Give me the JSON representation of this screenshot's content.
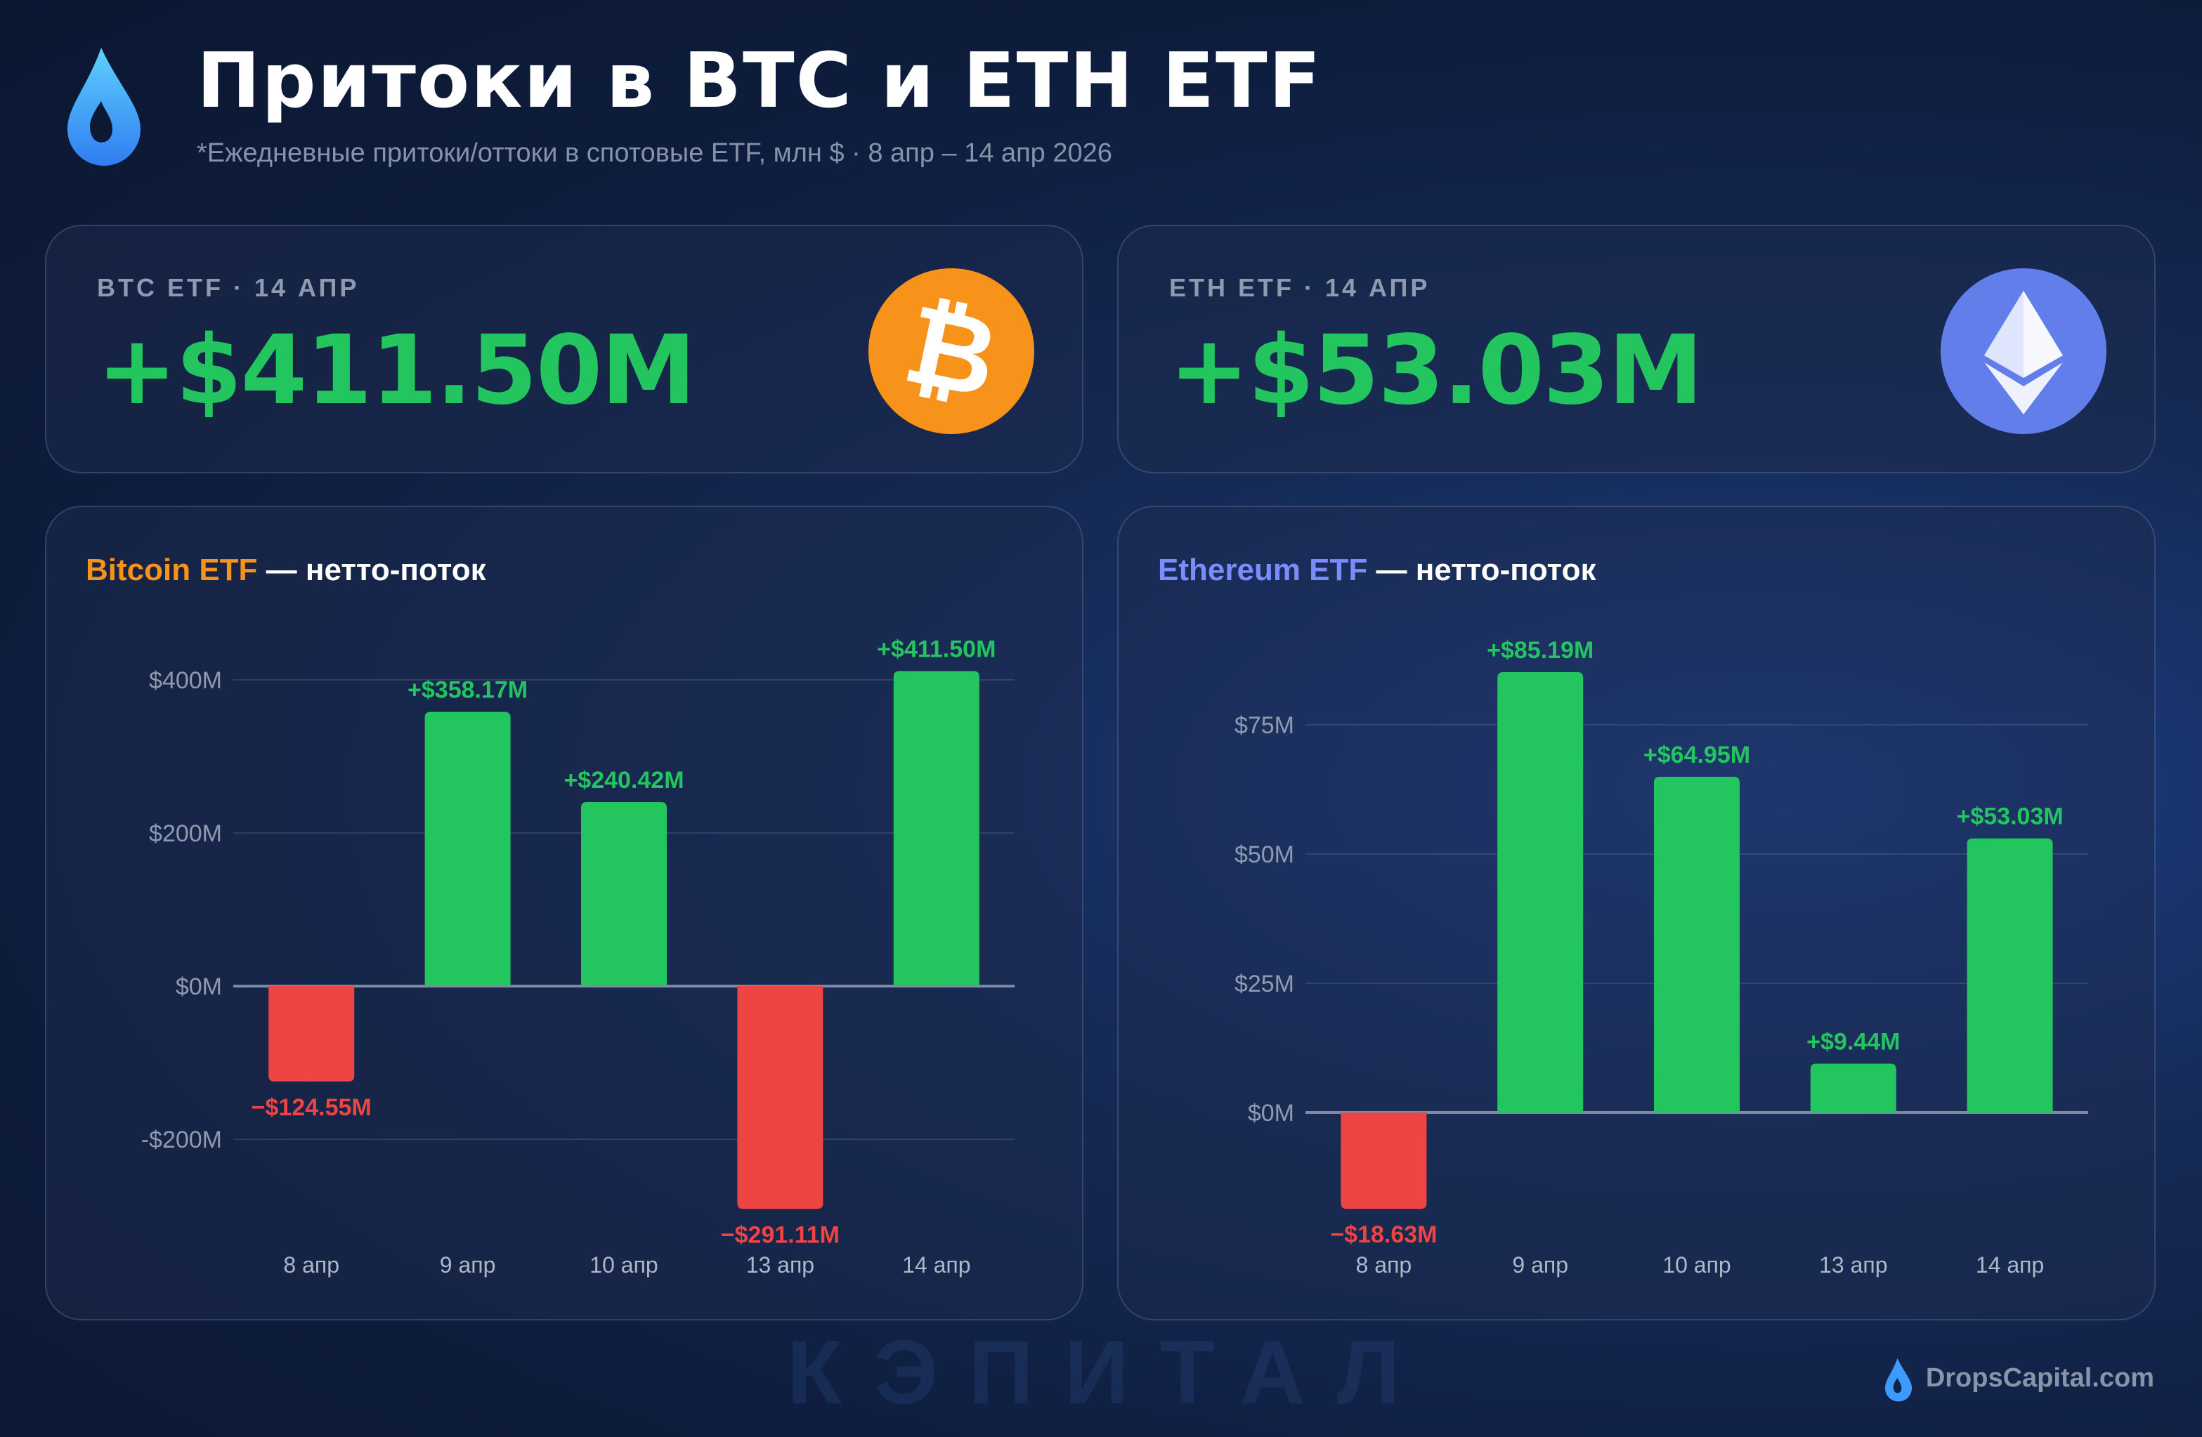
{
  "header": {
    "title": "Притоки в BTC и ETH ETF",
    "subtitle": "*Ежедневные притоки/оттоки в спотовые ETF, млн $ · 8 апр – 14 апр 2026",
    "logo_icon": "drop-icon"
  },
  "kpis": [
    {
      "label": "BTC ETF · 14 АПР",
      "value": "+$411.50M",
      "icon": "bitcoin-icon",
      "icon_color": "#f7931a"
    },
    {
      "label": "ETH ETF · 14 АПР",
      "value": "+$53.03M",
      "icon": "ethereum-icon",
      "icon_color": "#627eea"
    }
  ],
  "colors": {
    "positive": "#22c55e",
    "negative": "#ef4444",
    "btc_accent": "#f7931a",
    "eth_accent": "#7b8cff"
  },
  "chart_data": [
    {
      "type": "bar",
      "title_accent": "Bitcoin ETF",
      "title_rest": " — нетто-поток",
      "categories": [
        "8 апр",
        "9 апр",
        "10 апр",
        "13 апр",
        "14 апр"
      ],
      "values": [
        -124.55,
        358.17,
        240.42,
        -291.11,
        411.5
      ],
      "labels": [
        "−$124.55M",
        "+$358.17M",
        "+$240.42M",
        "−$291.11M",
        "+$411.50M"
      ],
      "yticks": [
        400,
        200,
        0,
        -200
      ],
      "ytick_labels": [
        "$400M",
        "$200M",
        "$0M",
        "-$200M"
      ],
      "ylim": [
        -330,
        440
      ],
      "grid": true
    },
    {
      "type": "bar",
      "title_accent": "Ethereum ETF",
      "title_rest": " — нетто-поток",
      "categories": [
        "8 апр",
        "9 апр",
        "10 апр",
        "13 апр",
        "14 апр"
      ],
      "values": [
        -18.63,
        85.19,
        64.95,
        9.44,
        53.03
      ],
      "labels": [
        "−$18.63M",
        "+$85.19M",
        "+$64.95M",
        "+$9.44M",
        "+$53.03M"
      ],
      "yticks": [
        75,
        50,
        25,
        0
      ],
      "ytick_labels": [
        "$75M",
        "$50M",
        "$25M",
        "$0M"
      ],
      "ylim": [
        -24,
        92
      ],
      "grid": true
    }
  ],
  "watermark": "КЭПИТАЛ",
  "footer": {
    "site": "DropsCapital.com"
  }
}
